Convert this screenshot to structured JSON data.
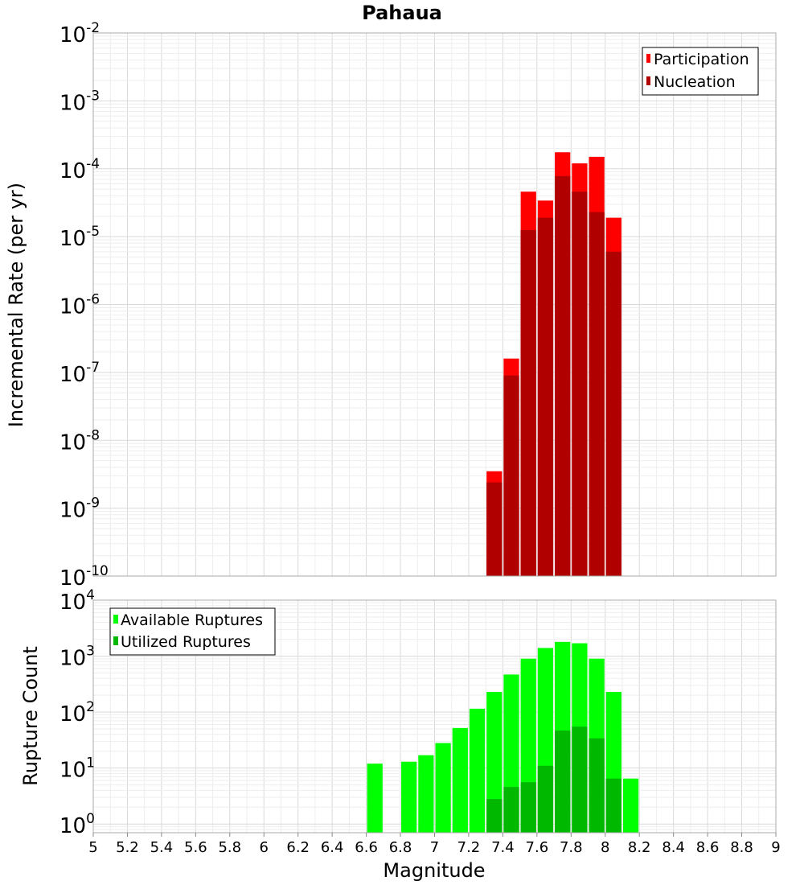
{
  "title": "Pahaua",
  "x_axis_label": "Magnitude",
  "colors": {
    "participation": "#ff0000",
    "nucleation": "#b00000",
    "available": "#00ff00",
    "utilized": "#00b800",
    "grid_major": "#d9d9d9",
    "grid_minor": "#eeeeee",
    "frame": "#aaaaaa"
  },
  "chart_data": [
    {
      "type": "bar",
      "ylabel": "Incremental Rate (per yr)",
      "yscale": "log",
      "ylim": [
        1e-10,
        0.01
      ],
      "y_tick_exponents": [
        "-10",
        "-9",
        "-8",
        "-7",
        "-6",
        "-5",
        "-4",
        "-3",
        "-2"
      ],
      "xlim": [
        5,
        9
      ],
      "legend_position": "top-right",
      "x": [
        7.35,
        7.45,
        7.55,
        7.65,
        7.75,
        7.85,
        7.95,
        8.05
      ],
      "series": [
        {
          "name": "Participation",
          "values": [
            3.5e-09,
            1.6e-07,
            4.6e-05,
            3.4e-05,
            0.000175,
            0.00012,
            0.00015,
            1.9e-05
          ]
        },
        {
          "name": "Nucleation",
          "values": [
            2.4e-09,
            9e-08,
            1.25e-05,
            1.9e-05,
            7.8e-05,
            4.6e-05,
            2.3e-05,
            6e-06
          ]
        }
      ]
    },
    {
      "type": "bar",
      "ylabel": "Rupture Count",
      "yscale": "log",
      "ylim": [
        0.7,
        10000
      ],
      "y_tick_exponents": [
        "0",
        "1",
        "2",
        "3",
        "4"
      ],
      "xlim": [
        5,
        9
      ],
      "x_ticks": [
        "5",
        "5.2",
        "5.4",
        "5.6",
        "5.8",
        "6",
        "6.2",
        "6.4",
        "6.6",
        "6.8",
        "7",
        "7.2",
        "7.4",
        "7.6",
        "7.8",
        "8",
        "8.2",
        "8.4",
        "8.6",
        "8.8",
        "9"
      ],
      "legend_position": "top-left",
      "x": [
        6.65,
        6.85,
        6.95,
        7.05,
        7.15,
        7.25,
        7.35,
        7.45,
        7.55,
        7.65,
        7.75,
        7.85,
        7.95,
        8.05,
        8.15
      ],
      "series": [
        {
          "name": "Available Ruptures",
          "values": [
            12,
            13,
            17,
            28,
            52,
            115,
            230,
            470,
            900,
            1400,
            1800,
            1700,
            900,
            230,
            6.5
          ]
        },
        {
          "name": "Utilized Ruptures",
          "values": [
            null,
            null,
            null,
            null,
            null,
            null,
            2.8,
            4.6,
            5.6,
            11,
            47,
            55,
            34,
            6.5,
            null
          ]
        }
      ]
    }
  ]
}
